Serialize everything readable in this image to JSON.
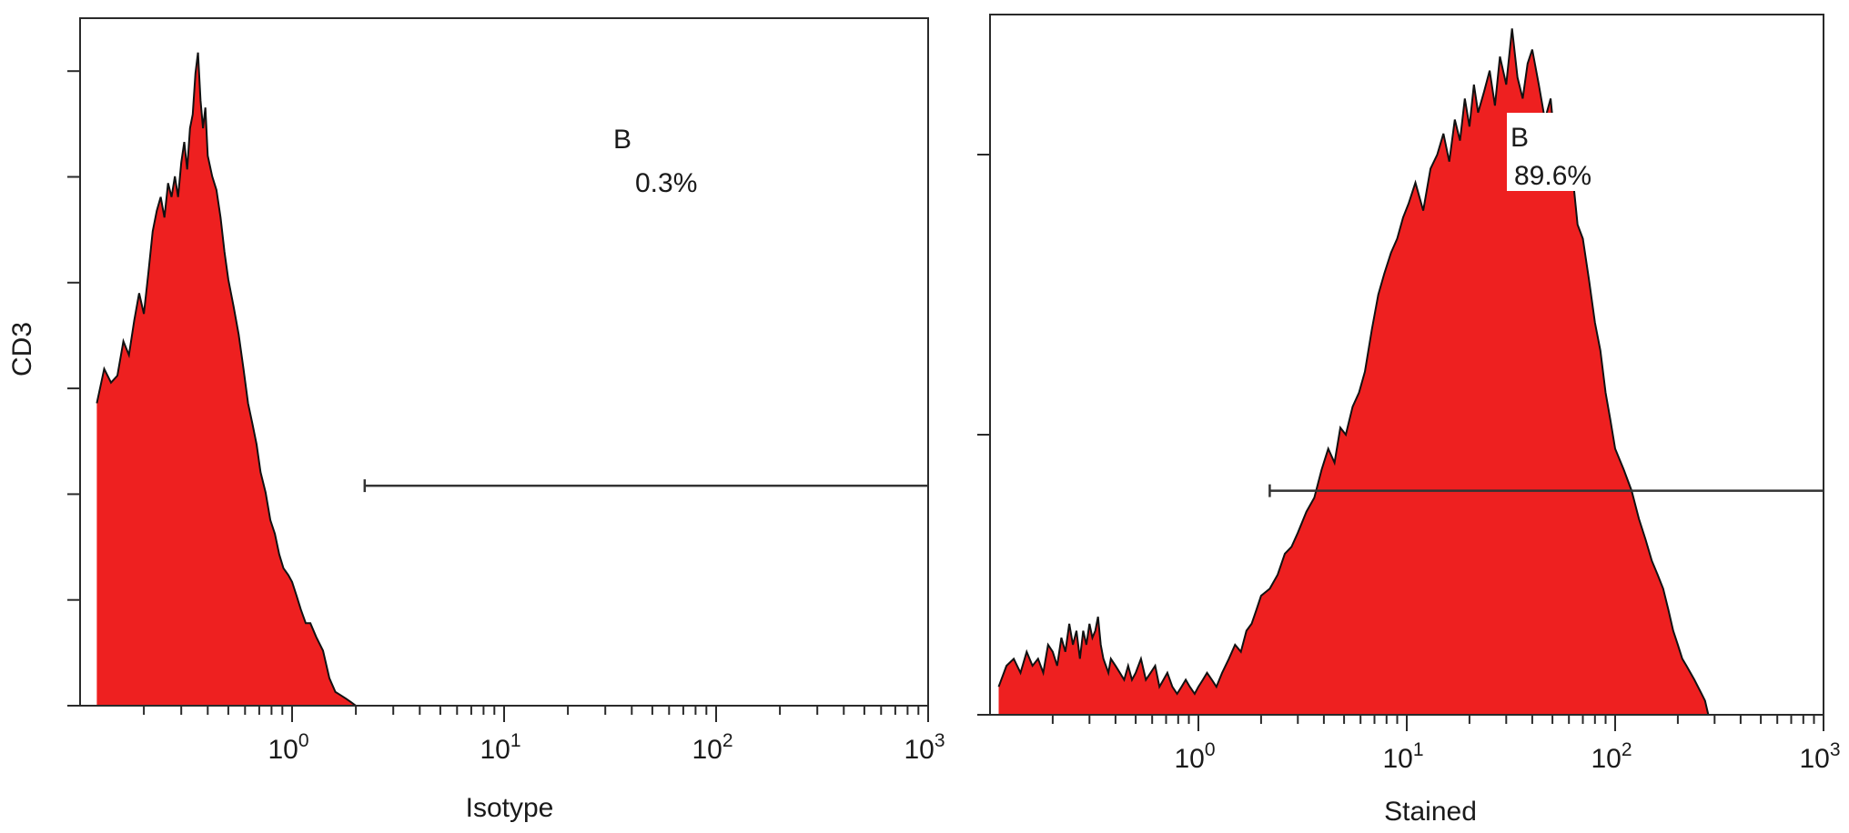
{
  "figure": {
    "y_axis_label": "CD3"
  },
  "colors": {
    "histogram_fill": "#ee2020",
    "histogram_outline": "#111111",
    "frame": "#2a2a2a",
    "gate": "#333333",
    "background": "#ffffff"
  },
  "chart_data": [
    {
      "type": "area",
      "panel": "left",
      "xlabel": "Isotype",
      "ylabel": "CD3",
      "x_scale": "log",
      "xlim": [
        0.1,
        1000
      ],
      "ylim": [
        0,
        100
      ],
      "x_ticks": [
        {
          "value": 1,
          "base": "10",
          "exp": "0"
        },
        {
          "value": 10,
          "base": "10",
          "exp": "1"
        },
        {
          "value": 100,
          "base": "10",
          "exp": "2"
        },
        {
          "value": 1000,
          "base": "10",
          "exp": "3"
        }
      ],
      "y_tick_count": 7,
      "gate": {
        "label": "B",
        "percent": "0.3%",
        "x_start": 2.2,
        "x_end": 1000,
        "y": 32
      },
      "series": [
        {
          "x": [
            0.12,
            0.13,
            0.14,
            0.15,
            0.16,
            0.17,
            0.18,
            0.19,
            0.2,
            0.21,
            0.22,
            0.23,
            0.24,
            0.25,
            0.26,
            0.27,
            0.28,
            0.29,
            0.3,
            0.31,
            0.32,
            0.33,
            0.34,
            0.35,
            0.36,
            0.37,
            0.38,
            0.39,
            0.4,
            0.42,
            0.44,
            0.46,
            0.48,
            0.5,
            0.53,
            0.56,
            0.59,
            0.62,
            0.65,
            0.68,
            0.71,
            0.75,
            0.79,
            0.83,
            0.87,
            0.91,
            0.96,
            1.0,
            1.05,
            1.1,
            1.16,
            1.22,
            1.3,
            1.4,
            1.5,
            1.6,
            1.7,
            1.8,
            1.9,
            2.0
          ],
          "y": [
            44,
            49,
            47,
            48,
            53,
            51,
            56,
            60,
            57,
            63,
            69,
            72,
            74,
            71,
            76,
            74,
            77,
            74,
            79,
            82,
            78,
            84,
            86,
            92,
            95,
            88,
            84,
            87,
            80,
            77,
            75,
            71,
            66,
            62,
            58,
            54,
            49,
            44,
            41,
            38,
            34,
            31,
            27,
            25,
            22,
            20,
            19,
            18,
            16,
            14,
            12,
            12,
            10,
            8,
            4,
            2,
            1.5,
            1,
            0.5,
            0
          ]
        }
      ]
    },
    {
      "type": "area",
      "panel": "right",
      "xlabel": "Stained",
      "ylabel": "",
      "x_scale": "log",
      "xlim": [
        0.1,
        1000
      ],
      "ylim": [
        0,
        100
      ],
      "x_ticks": [
        {
          "value": 1,
          "base": "10",
          "exp": "0"
        },
        {
          "value": 10,
          "base": "10",
          "exp": "1"
        },
        {
          "value": 100,
          "base": "10",
          "exp": "2"
        },
        {
          "value": 1000,
          "base": "10",
          "exp": "3"
        }
      ],
      "y_tick_count": 3,
      "gate": {
        "label": "B",
        "percent": "89.6%",
        "x_start": 2.2,
        "x_end": 1000,
        "y": 32
      },
      "series": [
        {
          "x": [
            0.11,
            0.12,
            0.13,
            0.14,
            0.15,
            0.16,
            0.17,
            0.18,
            0.19,
            0.2,
            0.21,
            0.22,
            0.23,
            0.24,
            0.25,
            0.26,
            0.27,
            0.28,
            0.29,
            0.3,
            0.31,
            0.32,
            0.33,
            0.34,
            0.35,
            0.36,
            0.37,
            0.38,
            0.4,
            0.42,
            0.44,
            0.46,
            0.48,
            0.5,
            0.53,
            0.56,
            0.59,
            0.62,
            0.65,
            0.68,
            0.71,
            0.75,
            0.79,
            0.83,
            0.87,
            0.91,
            0.96,
            1.0,
            1.05,
            1.1,
            1.16,
            1.22,
            1.3,
            1.4,
            1.5,
            1.6,
            1.7,
            1.8,
            1.9,
            2.0,
            2.2,
            2.4,
            2.6,
            2.8,
            3.0,
            3.3,
            3.6,
            3.9,
            4.2,
            4.5,
            4.8,
            5.1,
            5.5,
            5.9,
            6.3,
            6.8,
            7.3,
            7.8,
            8.4,
            9.0,
            9.6,
            10.2,
            11.0,
            12.0,
            13.0,
            14.0,
            15.0,
            16.0,
            17.0,
            18.0,
            19.0,
            20.0,
            21.0,
            22.0,
            23.5,
            25.0,
            26.5,
            28.0,
            30.0,
            32.0,
            34.0,
            36.0,
            38.0,
            40.0,
            43.0,
            46.0,
            49.0,
            52.0,
            55.0,
            58.0,
            62.0,
            66.0,
            70.0,
            75.0,
            80.0,
            85.0,
            90.0,
            95.0,
            100.0,
            110.0,
            120.0,
            130.0,
            140.0,
            150.0,
            160.0,
            170.0,
            180.0,
            190.0,
            200.0,
            210.0,
            220.0,
            240.0,
            260.0,
            270.0,
            280.0
          ],
          "y": [
            4,
            7,
            8,
            6,
            9,
            7,
            8,
            6,
            10,
            9,
            7,
            11,
            9,
            13,
            10,
            12,
            8,
            12,
            10,
            13,
            11,
            12,
            14,
            10,
            8,
            7,
            6,
            8,
            7,
            6,
            5,
            7,
            5,
            6,
            8,
            5,
            6,
            7,
            4,
            5,
            6,
            4,
            3,
            4,
            5,
            4,
            3,
            4,
            5,
            6,
            5,
            4,
            6,
            8,
            10,
            9,
            12,
            13,
            15,
            17,
            18,
            20,
            23,
            24,
            26,
            29,
            31,
            35,
            38,
            36,
            41,
            40,
            44,
            46,
            49,
            55,
            60,
            63,
            66,
            68,
            71,
            73,
            76,
            72,
            78,
            80,
            83,
            79,
            85,
            82,
            88,
            84,
            90,
            86,
            89,
            92,
            87,
            94,
            90,
            98,
            91,
            88,
            93,
            95,
            90,
            85,
            88,
            80,
            83,
            75,
            78,
            70,
            68,
            62,
            56,
            52,
            46,
            42,
            38,
            35,
            32,
            28,
            25,
            22,
            20,
            18,
            15,
            12,
            10,
            8,
            7,
            5,
            3,
            2,
            0
          ]
        }
      ]
    }
  ]
}
